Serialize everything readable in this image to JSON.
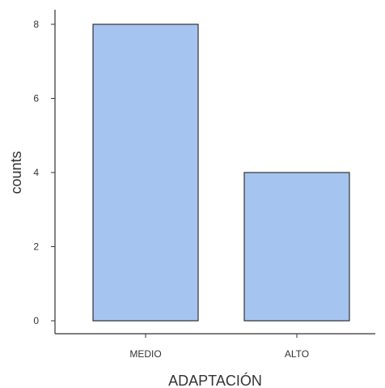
{
  "chart_data": {
    "type": "bar",
    "categories": [
      "MEDIO",
      "ALTO"
    ],
    "values": [
      8,
      4
    ],
    "xlabel": "ADAPTACIÓN",
    "ylabel": "counts",
    "ylim": [
      0,
      8.4
    ],
    "yticks": [
      0,
      2,
      4,
      6,
      8
    ],
    "grid": false,
    "colors": {
      "bar_fill": "#A6C4F0",
      "bar_stroke": "#333333",
      "axis": "#333333"
    }
  }
}
